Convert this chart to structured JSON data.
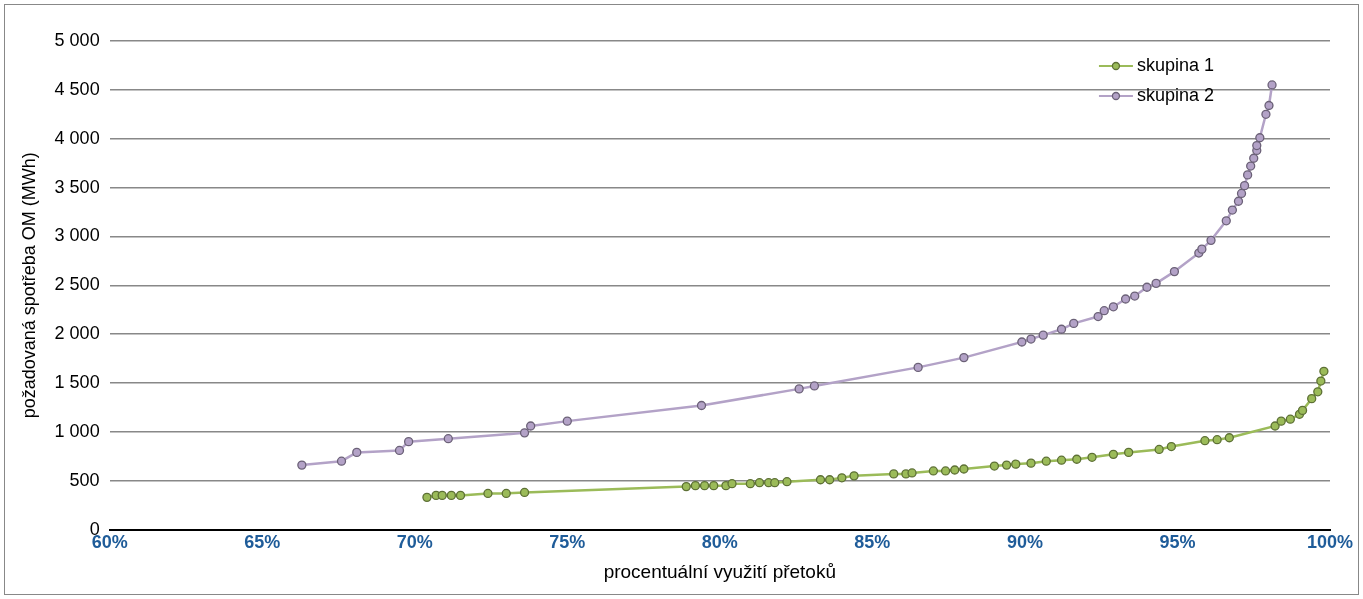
{
  "chart_data": {
    "type": "line",
    "xlabel": "procentuální využití přetoků",
    "ylabel": "požadovaná spotřeba OM (MWh)",
    "xlim": [
      60,
      100
    ],
    "xticks": [
      {
        "value": 60,
        "label": "60%"
      },
      {
        "value": 65,
        "label": "65%"
      },
      {
        "value": 70,
        "label": "70%"
      },
      {
        "value": 75,
        "label": "75%"
      },
      {
        "value": 80,
        "label": "80%"
      },
      {
        "value": 85,
        "label": "85%"
      },
      {
        "value": 90,
        "label": "90%"
      },
      {
        "value": 95,
        "label": "95%"
      },
      {
        "value": 100,
        "label": "100%"
      }
    ],
    "ylim": [
      0,
      5000
    ],
    "yticks": [
      {
        "value": 0,
        "label": "0"
      },
      {
        "value": 500,
        "label": "500"
      },
      {
        "value": 1000,
        "label": "1 000"
      },
      {
        "value": 1500,
        "label": "1 500"
      },
      {
        "value": 2000,
        "label": "2 000"
      },
      {
        "value": 2500,
        "label": "2 500"
      },
      {
        "value": 3000,
        "label": "3 000"
      },
      {
        "value": 3500,
        "label": "3 500"
      },
      {
        "value": 4000,
        "label": "4 000"
      },
      {
        "value": 4500,
        "label": "4 500"
      },
      {
        "value": 5000,
        "label": "5 000"
      }
    ],
    "grid": "y",
    "legend": "top right",
    "marker": "circle",
    "line_style": "solid",
    "series": [
      {
        "name": "skupina 1",
        "color": "#9bbb59",
        "x": [
          70.4,
          70.7,
          70.9,
          71.2,
          71.5,
          72.4,
          73.0,
          73.6,
          78.9,
          79.2,
          79.5,
          79.8,
          80.2,
          80.4,
          81.0,
          81.3,
          81.6,
          81.8,
          82.2,
          83.3,
          83.6,
          84.0,
          84.4,
          85.7,
          86.1,
          86.3,
          87.0,
          87.4,
          87.7,
          88.0,
          89.0,
          89.4,
          89.7,
          90.2,
          90.7,
          91.2,
          91.7,
          92.2,
          92.9,
          93.4,
          94.4,
          94.8,
          95.9,
          96.3,
          96.7,
          98.2,
          98.4,
          98.7,
          99.0,
          99.1,
          99.4,
          99.6,
          99.7,
          99.8
        ],
        "values": [
          330,
          350,
          350,
          350,
          350,
          370,
          370,
          380,
          440,
          450,
          450,
          450,
          450,
          470,
          470,
          480,
          480,
          480,
          490,
          510,
          510,
          530,
          550,
          570,
          570,
          580,
          600,
          600,
          610,
          620,
          650,
          660,
          670,
          680,
          700,
          710,
          720,
          740,
          770,
          790,
          820,
          850,
          910,
          920,
          940,
          1060,
          1110,
          1130,
          1180,
          1220,
          1340,
          1410,
          1520,
          1620
        ]
      },
      {
        "name": "skupina 2",
        "color": "#b3a2c7",
        "x": [
          66.3,
          67.6,
          68.1,
          69.5,
          69.8,
          71.1,
          73.6,
          73.8,
          75.0,
          79.4,
          82.6,
          83.1,
          86.5,
          88.0,
          89.9,
          90.2,
          90.6,
          91.2,
          91.6,
          92.4,
          92.6,
          92.9,
          93.3,
          93.6,
          94.0,
          94.3,
          94.9,
          95.7,
          95.8,
          96.1,
          96.6,
          96.8,
          97.0,
          97.1,
          97.2,
          97.3,
          97.4,
          97.5,
          97.6,
          97.6,
          97.7,
          97.9,
          98.0,
          98.1
        ],
        "values": [
          660,
          700,
          790,
          810,
          900,
          930,
          990,
          1060,
          1110,
          1270,
          1440,
          1470,
          1660,
          1760,
          1920,
          1950,
          1990,
          2050,
          2110,
          2180,
          2240,
          2280,
          2360,
          2390,
          2480,
          2520,
          2640,
          2830,
          2870,
          2960,
          3160,
          3270,
          3360,
          3440,
          3520,
          3630,
          3720,
          3800,
          3880,
          3930,
          4010,
          4250,
          4340,
          4550
        ]
      }
    ]
  }
}
